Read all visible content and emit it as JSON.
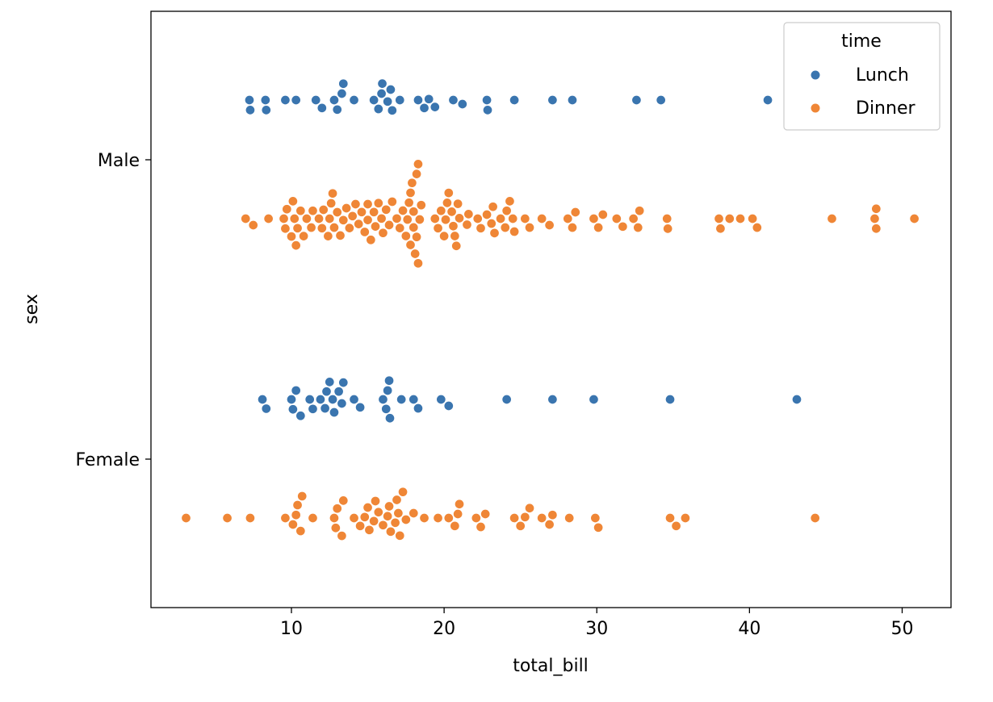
{
  "chart_data": {
    "type": "scatter",
    "subtype": "swarm",
    "xlabel": "total_bill",
    "ylabel": "sex",
    "xlim": [
      0.8,
      53.2
    ],
    "xticks": [
      10,
      20,
      30,
      40,
      50
    ],
    "categories": [
      "Male",
      "Female"
    ],
    "grid": false,
    "legend": {
      "title": "time",
      "position": "top-right",
      "entries": [
        "Lunch",
        "Dinner"
      ]
    },
    "series": [
      {
        "name": "Lunch",
        "color": "#3a75af",
        "points": [
          {
            "sex": "Male",
            "x": 7.25
          },
          {
            "sex": "Male",
            "x": 7.3
          },
          {
            "sex": "Male",
            "x": 8.3
          },
          {
            "sex": "Male",
            "x": 8.35
          },
          {
            "sex": "Male",
            "x": 9.6
          },
          {
            "sex": "Male",
            "x": 10.3
          },
          {
            "sex": "Male",
            "x": 11.6
          },
          {
            "sex": "Male",
            "x": 12.0
          },
          {
            "sex": "Male",
            "x": 12.8
          },
          {
            "sex": "Male",
            "x": 13.0
          },
          {
            "sex": "Male",
            "x": 13.3
          },
          {
            "sex": "Male",
            "x": 13.4
          },
          {
            "sex": "Male",
            "x": 14.1
          },
          {
            "sex": "Male",
            "x": 15.4
          },
          {
            "sex": "Male",
            "x": 15.7
          },
          {
            "sex": "Male",
            "x": 15.9
          },
          {
            "sex": "Male",
            "x": 15.95
          },
          {
            "sex": "Male",
            "x": 16.3
          },
          {
            "sex": "Male",
            "x": 16.5
          },
          {
            "sex": "Male",
            "x": 16.6
          },
          {
            "sex": "Male",
            "x": 17.1
          },
          {
            "sex": "Male",
            "x": 18.3
          },
          {
            "sex": "Male",
            "x": 18.7
          },
          {
            "sex": "Male",
            "x": 19.0
          },
          {
            "sex": "Male",
            "x": 19.4
          },
          {
            "sex": "Male",
            "x": 20.6
          },
          {
            "sex": "Male",
            "x": 21.2
          },
          {
            "sex": "Male",
            "x": 22.8
          },
          {
            "sex": "Male",
            "x": 22.85
          },
          {
            "sex": "Male",
            "x": 24.6
          },
          {
            "sex": "Male",
            "x": 27.1
          },
          {
            "sex": "Male",
            "x": 28.4
          },
          {
            "sex": "Male",
            "x": 32.6
          },
          {
            "sex": "Male",
            "x": 34.2
          },
          {
            "sex": "Male",
            "x": 41.2
          },
          {
            "sex": "Female",
            "x": 8.1
          },
          {
            "sex": "Female",
            "x": 8.35
          },
          {
            "sex": "Female",
            "x": 10.0
          },
          {
            "sex": "Female",
            "x": 10.1
          },
          {
            "sex": "Female",
            "x": 10.3
          },
          {
            "sex": "Female",
            "x": 10.6
          },
          {
            "sex": "Female",
            "x": 11.2
          },
          {
            "sex": "Female",
            "x": 11.4
          },
          {
            "sex": "Female",
            "x": 11.9
          },
          {
            "sex": "Female",
            "x": 12.2
          },
          {
            "sex": "Female",
            "x": 12.3
          },
          {
            "sex": "Female",
            "x": 12.5
          },
          {
            "sex": "Female",
            "x": 12.7
          },
          {
            "sex": "Female",
            "x": 12.8
          },
          {
            "sex": "Female",
            "x": 13.1
          },
          {
            "sex": "Female",
            "x": 13.3
          },
          {
            "sex": "Female",
            "x": 13.4
          },
          {
            "sex": "Female",
            "x": 14.1
          },
          {
            "sex": "Female",
            "x": 14.5
          },
          {
            "sex": "Female",
            "x": 16.0
          },
          {
            "sex": "Female",
            "x": 16.2
          },
          {
            "sex": "Female",
            "x": 16.3
          },
          {
            "sex": "Female",
            "x": 16.4
          },
          {
            "sex": "Female",
            "x": 16.45
          },
          {
            "sex": "Female",
            "x": 17.2
          },
          {
            "sex": "Female",
            "x": 18.0
          },
          {
            "sex": "Female",
            "x": 18.3
          },
          {
            "sex": "Female",
            "x": 19.8
          },
          {
            "sex": "Female",
            "x": 20.3
          },
          {
            "sex": "Female",
            "x": 24.1
          },
          {
            "sex": "Female",
            "x": 27.1
          },
          {
            "sex": "Female",
            "x": 29.8
          },
          {
            "sex": "Female",
            "x": 34.8
          },
          {
            "sex": "Female",
            "x": 43.1
          }
        ]
      },
      {
        "name": "Dinner",
        "color": "#ef8636",
        "points": [
          {
            "sex": "Male",
            "x": 7.0
          },
          {
            "sex": "Male",
            "x": 7.5
          },
          {
            "sex": "Male",
            "x": 8.5
          },
          {
            "sex": "Male",
            "x": 9.5
          },
          {
            "sex": "Male",
            "x": 9.6
          },
          {
            "sex": "Male",
            "x": 9.7
          },
          {
            "sex": "Male",
            "x": 10.0
          },
          {
            "sex": "Male",
            "x": 10.1
          },
          {
            "sex": "Male",
            "x": 10.2
          },
          {
            "sex": "Male",
            "x": 10.3
          },
          {
            "sex": "Male",
            "x": 10.4
          },
          {
            "sex": "Male",
            "x": 10.6
          },
          {
            "sex": "Male",
            "x": 10.8
          },
          {
            "sex": "Male",
            "x": 11.0
          },
          {
            "sex": "Male",
            "x": 11.3
          },
          {
            "sex": "Male",
            "x": 11.4
          },
          {
            "sex": "Male",
            "x": 11.8
          },
          {
            "sex": "Male",
            "x": 12.0
          },
          {
            "sex": "Male",
            "x": 12.1
          },
          {
            "sex": "Male",
            "x": 12.4
          },
          {
            "sex": "Male",
            "x": 12.5
          },
          {
            "sex": "Male",
            "x": 12.6
          },
          {
            "sex": "Male",
            "x": 12.7
          },
          {
            "sex": "Male",
            "x": 12.8
          },
          {
            "sex": "Male",
            "x": 13.0
          },
          {
            "sex": "Male",
            "x": 13.2
          },
          {
            "sex": "Male",
            "x": 13.4
          },
          {
            "sex": "Male",
            "x": 13.6
          },
          {
            "sex": "Male",
            "x": 13.8
          },
          {
            "sex": "Male",
            "x": 14.0
          },
          {
            "sex": "Male",
            "x": 14.2
          },
          {
            "sex": "Male",
            "x": 14.4
          },
          {
            "sex": "Male",
            "x": 14.6
          },
          {
            "sex": "Male",
            "x": 14.8
          },
          {
            "sex": "Male",
            "x": 15.0
          },
          {
            "sex": "Male",
            "x": 15.0
          },
          {
            "sex": "Male",
            "x": 15.2
          },
          {
            "sex": "Male",
            "x": 15.4
          },
          {
            "sex": "Male",
            "x": 15.5
          },
          {
            "sex": "Male",
            "x": 15.7
          },
          {
            "sex": "Male",
            "x": 15.9
          },
          {
            "sex": "Male",
            "x": 16.0
          },
          {
            "sex": "Male",
            "x": 16.2
          },
          {
            "sex": "Male",
            "x": 16.4
          },
          {
            "sex": "Male",
            "x": 16.6
          },
          {
            "sex": "Male",
            "x": 16.9
          },
          {
            "sex": "Male",
            "x": 17.1
          },
          {
            "sex": "Male",
            "x": 17.3
          },
          {
            "sex": "Male",
            "x": 17.5
          },
          {
            "sex": "Male",
            "x": 17.6
          },
          {
            "sex": "Male",
            "x": 17.7
          },
          {
            "sex": "Male",
            "x": 17.8
          },
          {
            "sex": "Male",
            "x": 17.8
          },
          {
            "sex": "Male",
            "x": 17.9
          },
          {
            "sex": "Male",
            "x": 18.0
          },
          {
            "sex": "Male",
            "x": 18.0
          },
          {
            "sex": "Male",
            "x": 18.1
          },
          {
            "sex": "Male",
            "x": 18.2
          },
          {
            "sex": "Male",
            "x": 18.2
          },
          {
            "sex": "Male",
            "x": 18.3
          },
          {
            "sex": "Male",
            "x": 18.3
          },
          {
            "sex": "Male",
            "x": 18.4
          },
          {
            "sex": "Male",
            "x": 18.5
          },
          {
            "sex": "Male",
            "x": 19.4
          },
          {
            "sex": "Male",
            "x": 19.6
          },
          {
            "sex": "Male",
            "x": 19.8
          },
          {
            "sex": "Male",
            "x": 20.0
          },
          {
            "sex": "Male",
            "x": 20.1
          },
          {
            "sex": "Male",
            "x": 20.2
          },
          {
            "sex": "Male",
            "x": 20.3
          },
          {
            "sex": "Male",
            "x": 20.5
          },
          {
            "sex": "Male",
            "x": 20.6
          },
          {
            "sex": "Male",
            "x": 20.7
          },
          {
            "sex": "Male",
            "x": 20.8
          },
          {
            "sex": "Male",
            "x": 20.9
          },
          {
            "sex": "Male",
            "x": 21.0
          },
          {
            "sex": "Male",
            "x": 21.5
          },
          {
            "sex": "Male",
            "x": 21.6
          },
          {
            "sex": "Male",
            "x": 22.2
          },
          {
            "sex": "Male",
            "x": 22.4
          },
          {
            "sex": "Male",
            "x": 22.8
          },
          {
            "sex": "Male",
            "x": 23.1
          },
          {
            "sex": "Male",
            "x": 23.2
          },
          {
            "sex": "Male",
            "x": 23.3
          },
          {
            "sex": "Male",
            "x": 23.7
          },
          {
            "sex": "Male",
            "x": 24.0
          },
          {
            "sex": "Male",
            "x": 24.1
          },
          {
            "sex": "Male",
            "x": 24.3
          },
          {
            "sex": "Male",
            "x": 24.5
          },
          {
            "sex": "Male",
            "x": 24.6
          },
          {
            "sex": "Male",
            "x": 25.3
          },
          {
            "sex": "Male",
            "x": 25.6
          },
          {
            "sex": "Male",
            "x": 26.4
          },
          {
            "sex": "Male",
            "x": 26.9
          },
          {
            "sex": "Male",
            "x": 28.1
          },
          {
            "sex": "Male",
            "x": 28.4
          },
          {
            "sex": "Male",
            "x": 28.6
          },
          {
            "sex": "Male",
            "x": 29.8
          },
          {
            "sex": "Male",
            "x": 30.1
          },
          {
            "sex": "Male",
            "x": 30.4
          },
          {
            "sex": "Male",
            "x": 31.3
          },
          {
            "sex": "Male",
            "x": 31.7
          },
          {
            "sex": "Male",
            "x": 32.4
          },
          {
            "sex": "Male",
            "x": 32.7
          },
          {
            "sex": "Male",
            "x": 32.8
          },
          {
            "sex": "Male",
            "x": 34.6
          },
          {
            "sex": "Male",
            "x": 34.65
          },
          {
            "sex": "Male",
            "x": 38.0
          },
          {
            "sex": "Male",
            "x": 38.1
          },
          {
            "sex": "Male",
            "x": 38.7
          },
          {
            "sex": "Male",
            "x": 39.4
          },
          {
            "sex": "Male",
            "x": 40.2
          },
          {
            "sex": "Male",
            "x": 40.5
          },
          {
            "sex": "Male",
            "x": 45.4
          },
          {
            "sex": "Male",
            "x": 48.2
          },
          {
            "sex": "Male",
            "x": 48.3
          },
          {
            "sex": "Male",
            "x": 48.3
          },
          {
            "sex": "Male",
            "x": 50.8
          },
          {
            "sex": "Female",
            "x": 3.1
          },
          {
            "sex": "Female",
            "x": 5.8
          },
          {
            "sex": "Female",
            "x": 7.3
          },
          {
            "sex": "Female",
            "x": 9.6
          },
          {
            "sex": "Female",
            "x": 10.1
          },
          {
            "sex": "Female",
            "x": 10.3
          },
          {
            "sex": "Female",
            "x": 10.4
          },
          {
            "sex": "Female",
            "x": 10.6
          },
          {
            "sex": "Female",
            "x": 10.7
          },
          {
            "sex": "Female",
            "x": 11.4
          },
          {
            "sex": "Female",
            "x": 12.8
          },
          {
            "sex": "Female",
            "x": 12.9
          },
          {
            "sex": "Female",
            "x": 13.0
          },
          {
            "sex": "Female",
            "x": 13.3
          },
          {
            "sex": "Female",
            "x": 13.4
          },
          {
            "sex": "Female",
            "x": 14.1
          },
          {
            "sex": "Female",
            "x": 14.5
          },
          {
            "sex": "Female",
            "x": 14.8
          },
          {
            "sex": "Female",
            "x": 15.0
          },
          {
            "sex": "Female",
            "x": 15.1
          },
          {
            "sex": "Female",
            "x": 15.4
          },
          {
            "sex": "Female",
            "x": 15.5
          },
          {
            "sex": "Female",
            "x": 15.7
          },
          {
            "sex": "Female",
            "x": 16.0
          },
          {
            "sex": "Female",
            "x": 16.3
          },
          {
            "sex": "Female",
            "x": 16.4
          },
          {
            "sex": "Female",
            "x": 16.5
          },
          {
            "sex": "Female",
            "x": 16.8
          },
          {
            "sex": "Female",
            "x": 16.9
          },
          {
            "sex": "Female",
            "x": 17.0
          },
          {
            "sex": "Female",
            "x": 17.1
          },
          {
            "sex": "Female",
            "x": 17.3
          },
          {
            "sex": "Female",
            "x": 17.5
          },
          {
            "sex": "Female",
            "x": 18.0
          },
          {
            "sex": "Female",
            "x": 18.7
          },
          {
            "sex": "Female",
            "x": 19.6
          },
          {
            "sex": "Female",
            "x": 20.3
          },
          {
            "sex": "Female",
            "x": 20.7
          },
          {
            "sex": "Female",
            "x": 20.9
          },
          {
            "sex": "Female",
            "x": 21.0
          },
          {
            "sex": "Female",
            "x": 22.1
          },
          {
            "sex": "Female",
            "x": 22.4
          },
          {
            "sex": "Female",
            "x": 22.7
          },
          {
            "sex": "Female",
            "x": 24.6
          },
          {
            "sex": "Female",
            "x": 25.0
          },
          {
            "sex": "Female",
            "x": 25.3
          },
          {
            "sex": "Female",
            "x": 25.6
          },
          {
            "sex": "Female",
            "x": 26.4
          },
          {
            "sex": "Female",
            "x": 26.9
          },
          {
            "sex": "Female",
            "x": 27.1
          },
          {
            "sex": "Female",
            "x": 28.2
          },
          {
            "sex": "Female",
            "x": 29.9
          },
          {
            "sex": "Female",
            "x": 30.1
          },
          {
            "sex": "Female",
            "x": 34.8
          },
          {
            "sex": "Female",
            "x": 35.2
          },
          {
            "sex": "Female",
            "x": 35.8
          },
          {
            "sex": "Female",
            "x": 44.3
          }
        ]
      }
    ]
  }
}
